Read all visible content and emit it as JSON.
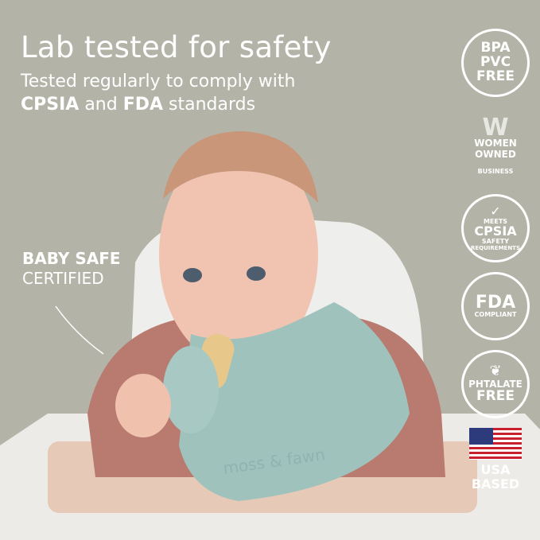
{
  "headline": "Lab tested for safety",
  "subline": {
    "line1": "Tested regularly to comply with",
    "cpsia": "CPSIA",
    "and": " and ",
    "fda": "FDA",
    "standards": " standards"
  },
  "callout": {
    "line1": "BABY SAFE",
    "line2": "CERTIFIED"
  },
  "brand_on_bib": "moss & fawn",
  "badges": {
    "bpa": [
      "BPA",
      "PVC",
      "FREE"
    ],
    "women": [
      "WOMEN",
      "OWNED",
      "BUSINESS"
    ],
    "cpsia": [
      "MEETS",
      "CPSIA",
      "SAFETY",
      "REQUIREMENTS"
    ],
    "fda": [
      "FDA",
      "COMPLIANT"
    ],
    "phthalate": [
      "PHTALATE",
      "FREE"
    ],
    "usa": [
      "USA",
      "BASED"
    ]
  },
  "colors": {
    "background": "#b3b4a7",
    "bib": "#9fc2bd",
    "text": "#ffffff"
  }
}
